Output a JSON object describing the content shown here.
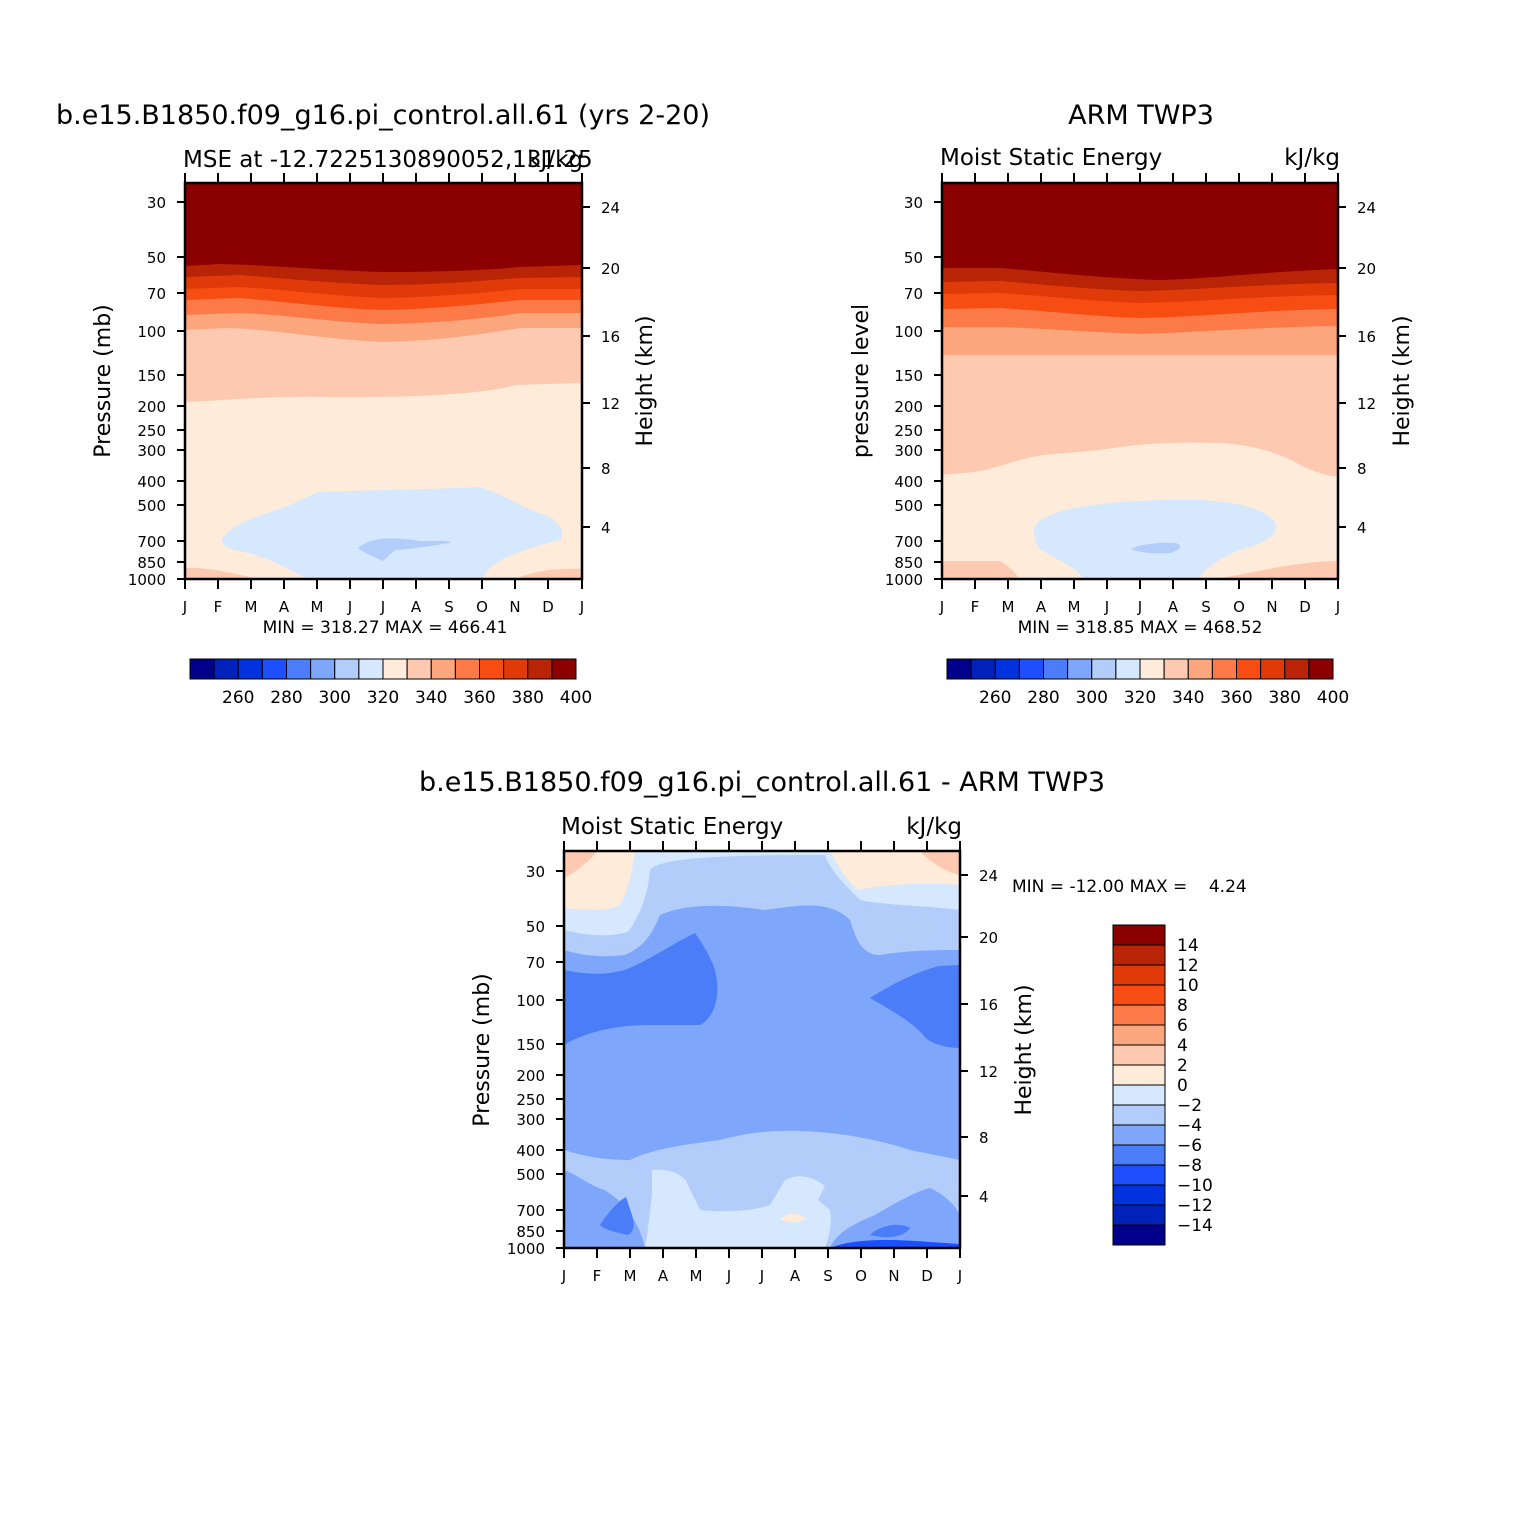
{
  "chart_data": [
    {
      "type": "contour",
      "title": "b.e15.B1850.f09_g16.pi_control.all.61 (yrs 2-20)",
      "subtitle_left": "MSE at -12.7225130890052,131.25",
      "subtitle_right": "kJ/kg",
      "xlabel": "",
      "ylabel": "Pressure (mb)",
      "ylabel_right": "Height (km)",
      "x_ticks": [
        "J",
        "F",
        "M",
        "A",
        "M",
        "J",
        "J",
        "A",
        "S",
        "O",
        "N",
        "D",
        "J"
      ],
      "y_ticks": [
        "30",
        "50",
        "70",
        "100",
        "150",
        "200",
        "250",
        "300",
        "400",
        "500",
        "700",
        "850",
        "1000"
      ],
      "y_ticks_right": [
        "24",
        "20",
        "16",
        "12",
        "8",
        "4"
      ],
      "minmax": "MIN = 318.27 MAX = 466.41",
      "colorbar_labels": [
        "260",
        "280",
        "300",
        "320",
        "340",
        "360",
        "380",
        "400"
      ],
      "colorbar_levels": [
        250,
        260,
        270,
        280,
        290,
        300,
        310,
        320,
        330,
        340,
        350,
        360,
        370,
        380,
        390,
        400
      ],
      "colorbar_colors": [
        "#00008b",
        "#0022bb",
        "#0033dd",
        "#1e4fff",
        "#4a7df7",
        "#7ea6fb",
        "#b3cdfb",
        "#d6e8fd",
        "#feebda",
        "#fdcab1",
        "#fca67e",
        "#fc7a48",
        "#f74d12",
        "#e03a09",
        "#b82405",
        "#8b0000"
      ],
      "min": 318.27,
      "max": 466.41
    },
    {
      "type": "contour",
      "title": "ARM TWP3",
      "subtitle_left": "Moist Static Energy",
      "subtitle_right": "kJ/kg",
      "xlabel": "",
      "ylabel": "pressure level",
      "ylabel_right": "Height (km)",
      "x_ticks": [
        "J",
        "F",
        "M",
        "A",
        "M",
        "J",
        "J",
        "A",
        "S",
        "O",
        "N",
        "D",
        "J"
      ],
      "y_ticks": [
        "30",
        "50",
        "70",
        "100",
        "150",
        "200",
        "250",
        "300",
        "400",
        "500",
        "700",
        "850",
        "1000"
      ],
      "y_ticks_right": [
        "24",
        "20",
        "16",
        "12",
        "8",
        "4"
      ],
      "minmax": "MIN = 318.85 MAX = 468.52",
      "colorbar_labels": [
        "260",
        "280",
        "300",
        "320",
        "340",
        "360",
        "380",
        "400"
      ],
      "colorbar_levels": [
        250,
        260,
        270,
        280,
        290,
        300,
        310,
        320,
        330,
        340,
        350,
        360,
        370,
        380,
        390,
        400
      ],
      "colorbar_colors": [
        "#00008b",
        "#0022bb",
        "#0033dd",
        "#1e4fff",
        "#4a7df7",
        "#7ea6fb",
        "#b3cdfb",
        "#d6e8fd",
        "#feebda",
        "#fdcab1",
        "#fca67e",
        "#fc7a48",
        "#f74d12",
        "#e03a09",
        "#b82405",
        "#8b0000"
      ],
      "min": 318.85,
      "max": 468.52
    },
    {
      "type": "contour",
      "title": "b.e15.B1850.f09_g16.pi_control.all.61 - ARM TWP3",
      "subtitle_left": "Moist Static Energy",
      "subtitle_right": "kJ/kg",
      "xlabel": "",
      "ylabel": "Pressure (mb)",
      "ylabel_right": "Height (km)",
      "x_ticks": [
        "J",
        "F",
        "M",
        "A",
        "M",
        "J",
        "J",
        "A",
        "S",
        "O",
        "N",
        "D",
        "J"
      ],
      "y_ticks": [
        "30",
        "50",
        "70",
        "100",
        "150",
        "200",
        "250",
        "300",
        "400",
        "500",
        "700",
        "850",
        "1000"
      ],
      "y_ticks_right": [
        "24",
        "20",
        "16",
        "12",
        "8",
        "4"
      ],
      "minmax": "MIN = -12.00 MAX =    4.24",
      "colorbar_labels": [
        "14",
        "12",
        "10",
        "8",
        "6",
        "4",
        "2",
        "0",
        "-2",
        "-4",
        "-6",
        "-8",
        "-10",
        "-12",
        "-14"
      ],
      "colorbar_colors": [
        "#8b0000",
        "#b82405",
        "#e03a09",
        "#f74d12",
        "#fc7a48",
        "#fca67e",
        "#fdcab1",
        "#feebda",
        "#d6e8fd",
        "#b3cdfb",
        "#7ea6fb",
        "#4a7df7",
        "#1e4fff",
        "#0033dd",
        "#0022bb",
        "#00008b"
      ],
      "min": -12.0,
      "max": 4.24
    }
  ]
}
